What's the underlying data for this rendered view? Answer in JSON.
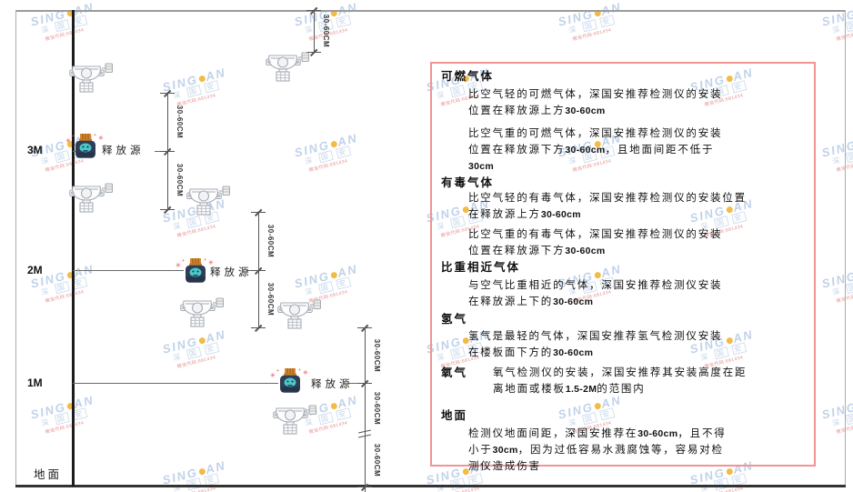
{
  "watermark": {
    "brand_left": "SING",
    "brand_right": "AN",
    "subtext": "深国安",
    "code": "微信代码:681434",
    "brand_color": "#bdd0e8",
    "dot_color": "#f1b83d",
    "code_color": "#e58888"
  },
  "diagram": {
    "height_labels": [
      "3M",
      "2M",
      "1M"
    ],
    "ground_label": "地面",
    "release_source_label": "释放源",
    "dim_label": "30-60CM",
    "release_source_count": 3,
    "detector_count": 7
  },
  "panel": {
    "border_color": "#f09494",
    "sections": [
      {
        "heading": "可燃气体",
        "paragraphs": [
          [
            "比空气轻的可燃气体，深国安推荐检测仪的安装",
            "位置在释放源上方30-60cm"
          ],
          [
            "比空气重的可燃气体，深国安推荐检测仪的安装",
            "位置在释放源下方30-60cm，且地面间距不低于",
            "30cm"
          ]
        ]
      },
      {
        "heading": "有毒气体",
        "paragraphs": [
          [
            "比空气轻的有毒气体，深国安推荐检测仪的安装位置",
            "在释放源上方30-60cm"
          ],
          [
            "比空气重的有毒气体，深国安推荐检测仪的安装",
            "位置在释放源下方30-60cm"
          ]
        ]
      },
      {
        "heading": "比重相近气体",
        "paragraphs": [
          [
            "与空气比重相近的气体，深国安推荐检测仪安装",
            "在释放源上下的30-60cm"
          ]
        ]
      },
      {
        "heading": "氢气",
        "paragraphs": [
          [
            "氢气是最轻的气体，深国安推荐氢气检测仪安装",
            "在楼板面下方的30-60cm"
          ]
        ]
      },
      {
        "heading": "氧气",
        "inline": true,
        "paragraphs": [
          [
            "氧气检测仪的安装，深国安推荐其安装高度在距",
            "离地面或楼板1.5-2M的范围内"
          ]
        ]
      },
      {
        "heading": "地面",
        "paragraphs": [
          [
            "检测仪地面间距，深国安推荐在30-60cm，且不得",
            "小于30cm，因为过低容易水溅腐蚀等，容易对检",
            "测仪造成伤害"
          ]
        ]
      }
    ]
  }
}
